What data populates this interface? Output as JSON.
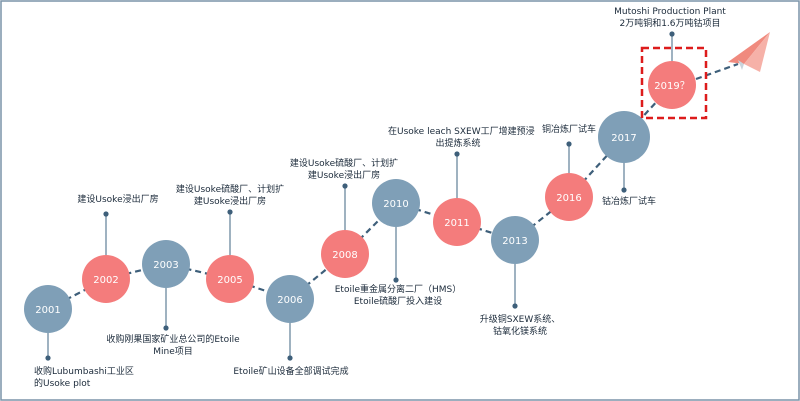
{
  "colors": {
    "blue": "#7f9fb7",
    "red": "#f47c7c",
    "connector": "#3e5f7a",
    "frame": "#7a93a8",
    "highlight": "#dd1c1c",
    "plane": "#f08a7e",
    "plane_shade": "#c9d4dc"
  },
  "milestones": [
    {
      "year": "2001",
      "tone": "blue"
    },
    {
      "year": "2002",
      "tone": "red"
    },
    {
      "year": "2003",
      "tone": "blue"
    },
    {
      "year": "2005",
      "tone": "red"
    },
    {
      "year": "2006",
      "tone": "blue"
    },
    {
      "year": "2008",
      "tone": "red"
    },
    {
      "year": "2010",
      "tone": "blue"
    },
    {
      "year": "2011",
      "tone": "red"
    },
    {
      "year": "2013",
      "tone": "blue"
    },
    {
      "year": "2016",
      "tone": "red"
    },
    {
      "year": "2017",
      "tone": "blue"
    },
    {
      "year": "2019？",
      "tone": "red",
      "highlighted": true
    }
  ],
  "captions": {
    "c2001": [
      "收购Lubumbashi工业区",
      "的Usoke plot"
    ],
    "c2002": [
      "建设Usoke浸出厂房"
    ],
    "c2003": [
      "收购刚果国家矿业总公司的Etoile",
      "Mine项目"
    ],
    "c2005": [
      "建设Usoke硫酸厂、计划扩",
      "建Usoke浸出厂房"
    ],
    "c2006": [
      "Etoile矿山设备全部调试完成"
    ],
    "c2008": [
      "建设Usoke硫酸厂、计划扩",
      "建Usoke浸出厂房"
    ],
    "c2010": [
      "Etoile重金属分离二厂（HMS）",
      "Etoile硫酸厂投入建设"
    ],
    "c2011": [
      "在Usoke leach SXEW工厂增建预浸",
      "出提炼系统"
    ],
    "c2013": [
      "升级铜SXEW系统、",
      "钴氧化镁系统"
    ],
    "c2016": [
      "铜冶炼厂试车"
    ],
    "c2017": [
      "钴冶炼厂试车"
    ],
    "c2019": [
      "Mutoshi Production Plant",
      "2万吨铜和1.6万吨钴项目"
    ]
  }
}
